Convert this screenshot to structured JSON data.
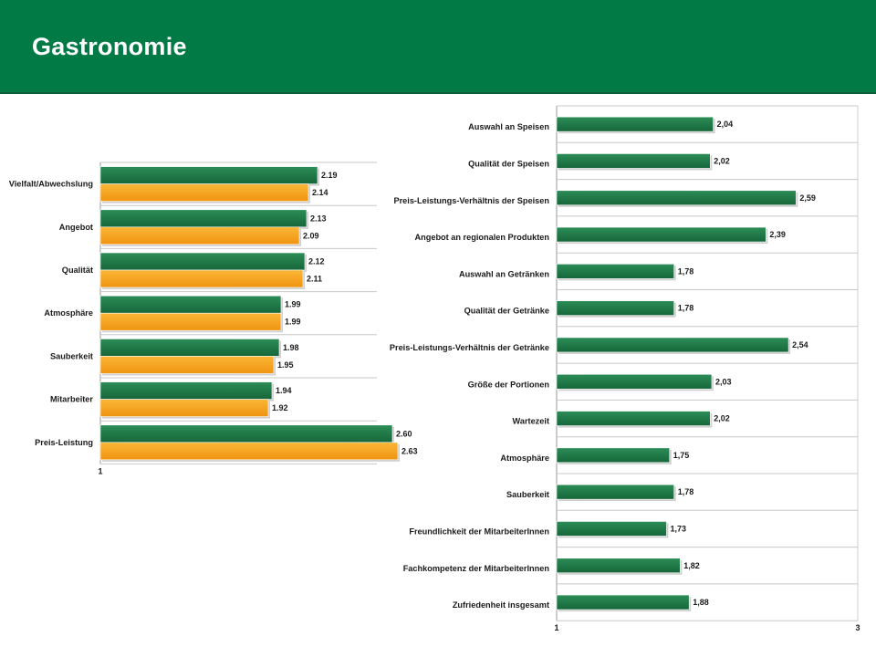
{
  "header": {
    "title": "Gastronomie"
  },
  "colors": {
    "header_bg": "#017a46",
    "green": "#1e7a46",
    "orange": "#f6a21e"
  },
  "chart_data": [
    {
      "type": "bar",
      "orientation": "horizontal",
      "categories": [
        "Vielfalt/Abwechslung",
        "Angebot",
        "Qualität",
        "Atmosphäre",
        "Sauberkeit",
        "Mitarbeiter",
        "Preis-Leistung"
      ],
      "series": [
        {
          "color": "#1e7a46",
          "values": [
            2.19,
            2.13,
            2.12,
            1.99,
            1.98,
            1.94,
            2.6
          ],
          "labels": [
            "2.19",
            "2.13",
            "2.12",
            "1.99",
            "1.98",
            "1.94",
            "2.60"
          ]
        },
        {
          "color": "#f6a21e",
          "values": [
            2.14,
            2.09,
            2.11,
            1.99,
            1.95,
            1.92,
            2.63
          ],
          "labels": [
            "2.14",
            "2.09",
            "2.11",
            "1.99",
            "1.95",
            "1.92",
            "2.63"
          ]
        }
      ],
      "xlim": [
        1,
        3
      ],
      "xticks": [
        "1"
      ],
      "grid": true
    },
    {
      "type": "bar",
      "orientation": "horizontal",
      "categories": [
        "Auswahl an Speisen",
        "Qualität der Speisen",
        "Preis-Leistungs-Verhältnis der Speisen",
        "Angebot an regionalen Produkten",
        "Auswahl an Getränken",
        "Qualität der Getränke",
        "Preis-Leistungs-Verhältnis der Getränke",
        "Größe der Portionen",
        "Wartezeit",
        "Atmosphäre",
        "Sauberkeit",
        "Freundlichkeit der MitarbeiterInnen",
        "Fachkompetenz der MitarbeiterInnen",
        "Zufriedenheit insgesamt"
      ],
      "series": [
        {
          "color": "#1e7a46",
          "values": [
            2.04,
            2.02,
            2.59,
            2.39,
            1.78,
            1.78,
            2.54,
            2.03,
            2.02,
            1.75,
            1.78,
            1.73,
            1.82,
            1.88
          ],
          "labels": [
            "2,04",
            "2,02",
            "2,59",
            "2,39",
            "1,78",
            "1,78",
            "2,54",
            "2,03",
            "2,02",
            "1,75",
            "1,78",
            "1,73",
            "1,82",
            "1,88"
          ]
        }
      ],
      "xlim": [
        1,
        3
      ],
      "xticks": [
        "1",
        "3"
      ],
      "grid": true
    }
  ]
}
